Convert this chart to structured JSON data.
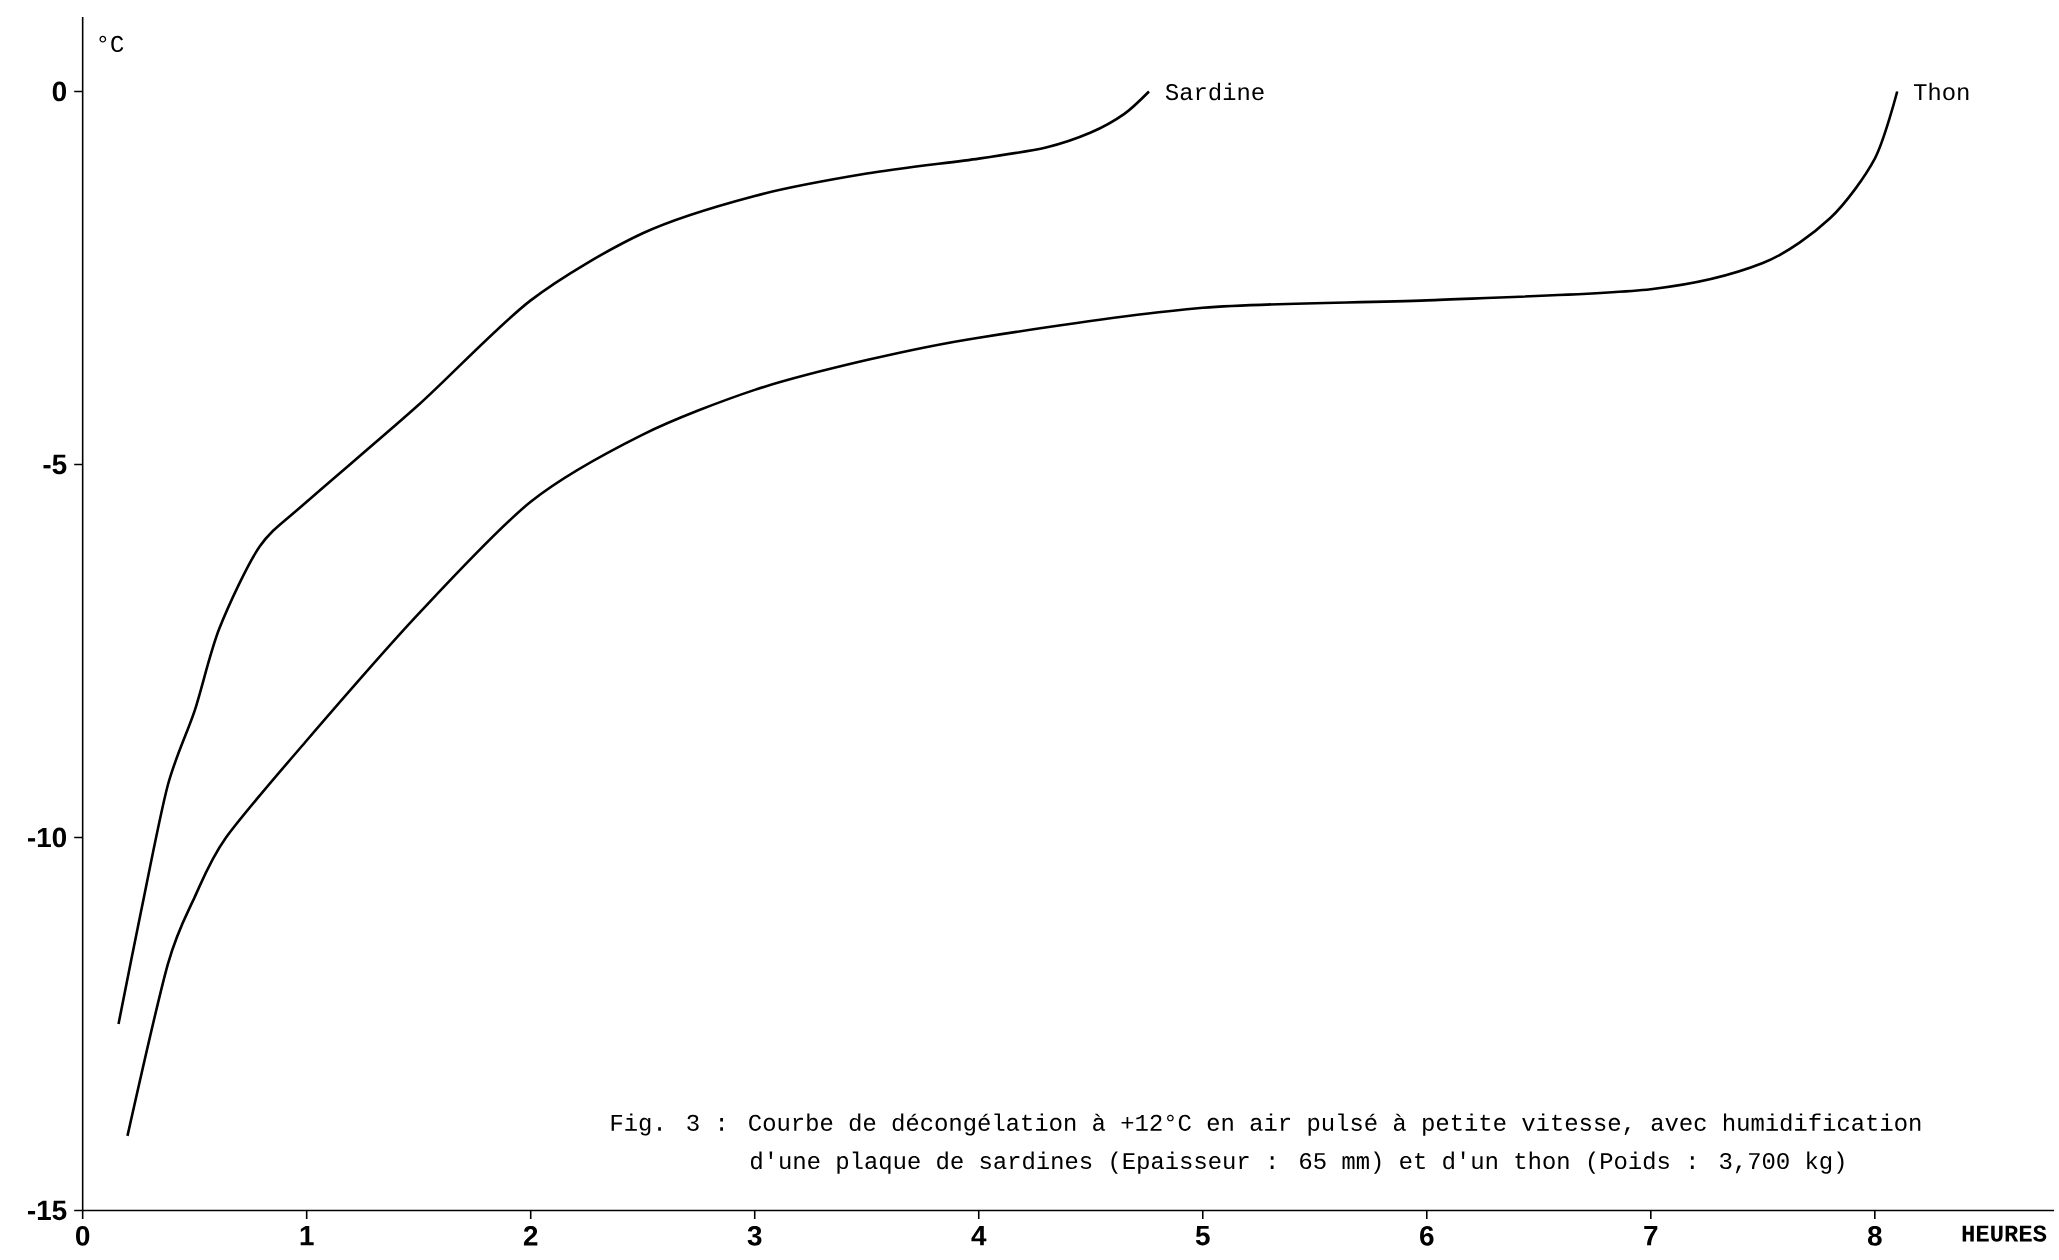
{
  "chart_data": {
    "type": "line",
    "xlabel": "HEURES",
    "ylabel": "°C",
    "xlim": [
      0,
      8.8
    ],
    "ylim": [
      -15,
      1
    ],
    "xticks": [
      0,
      1,
      2,
      3,
      4,
      5,
      6,
      7,
      8
    ],
    "yticks": [
      -15,
      -10,
      -5,
      0
    ],
    "series": [
      {
        "name": "Sardine",
        "color": "#000000",
        "x": [
          0.16,
          0.26,
          0.38,
          0.5,
          0.61,
          0.79,
          1,
          1.5,
          2,
          2.5,
          3,
          3.5,
          4,
          4.3,
          4.5,
          4.65,
          4.76
        ],
        "values": [
          -12.5,
          -11,
          -9.3,
          -8.3,
          -7.2,
          -6.1,
          -5.5,
          -4.2,
          -2.8,
          -1.9,
          -1.4,
          -1.1,
          -0.9,
          -0.75,
          -0.55,
          -0.3,
          0
        ]
      },
      {
        "name": "Thon",
        "color": "#000000",
        "x": [
          0.2,
          0.38,
          0.5,
          0.64,
          1,
          1.5,
          2,
          2.5,
          3,
          3.5,
          4,
          5,
          6,
          7,
          7.5,
          7.8,
          8,
          8.1
        ],
        "values": [
          -14,
          -11.7,
          -10.8,
          -10,
          -8.7,
          -7,
          -5.5,
          -4.6,
          -4,
          -3.6,
          -3.3,
          -2.9,
          -2.8,
          -2.65,
          -2.3,
          -1.7,
          -0.9,
          0
        ]
      }
    ],
    "annotations": [
      "Fig. 3 : Courbe de décongélation à +12°C en air pulsé à petite vitesse, avec humidification",
      "d'une plaque de sardines (Epaisseur : 65 mm) et d'un thon (Poids : 3,700 kg)"
    ]
  }
}
